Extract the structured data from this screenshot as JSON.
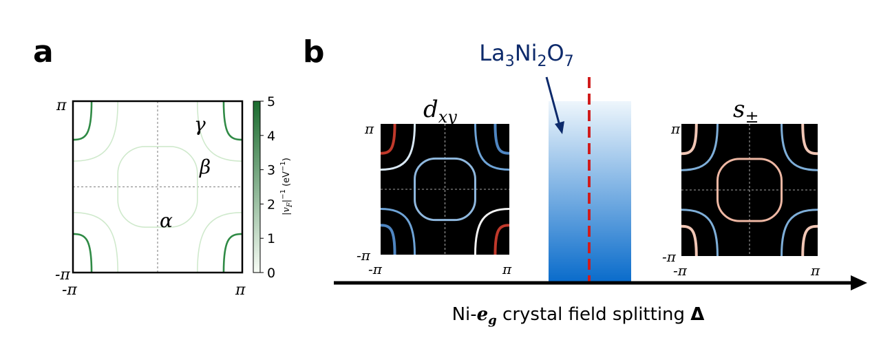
{
  "panel_a": {
    "label": "a",
    "y_top": "π",
    "y_bottom": "-π",
    "x_left": "-π",
    "x_right": "π",
    "band_labels": [
      "γ",
      "β",
      "α"
    ],
    "colorbar": {
      "ticks": [
        "5",
        "4",
        "3",
        "2",
        "1",
        "0"
      ],
      "label_parts": [
        "|v",
        "F",
        "|",
        "−1",
        " (eV",
        "−1",
        ")"
      ]
    }
  },
  "panel_b": {
    "label": "b",
    "material_parts": [
      "La",
      "3",
      "Ni",
      "2",
      "O",
      "7"
    ],
    "left_inset": {
      "title_parts": [
        "d",
        "xy"
      ],
      "y_top": "π",
      "y_bottom": "-π",
      "x_left": "-π",
      "x_right": "π"
    },
    "right_inset": {
      "title_parts": [
        "s",
        "±"
      ],
      "y_top": "π",
      "y_bottom": "-π",
      "x_left": "-π",
      "x_right": "π"
    },
    "axis_label_parts": [
      "Ni-",
      "e",
      "g",
      " crystal field splitting ",
      "Δ"
    ]
  }
}
